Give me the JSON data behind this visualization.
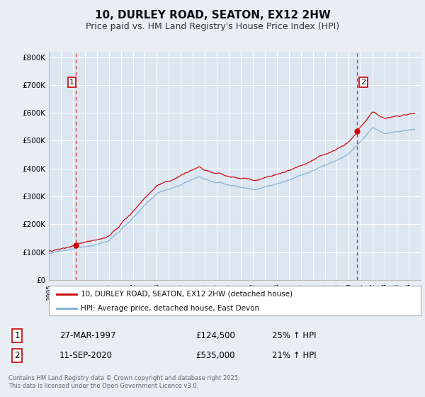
{
  "title": "10, DURLEY ROAD, SEATON, EX12 2HW",
  "subtitle": "Price paid vs. HM Land Registry's House Price Index (HPI)",
  "title_fontsize": 11,
  "subtitle_fontsize": 9,
  "background_color": "#e8eef4",
  "plot_bg_color": "#dce6f0",
  "grid_color": "#ffffff",
  "red_line_color": "#cc0000",
  "blue_line_color": "#7aadd4",
  "ylim": [
    0,
    820000
  ],
  "yticks": [
    0,
    100000,
    200000,
    300000,
    400000,
    500000,
    600000,
    700000,
    800000
  ],
  "ytick_labels": [
    "£0",
    "£100K",
    "£200K",
    "£300K",
    "£400K",
    "£500K",
    "£600K",
    "£700K",
    "£800K"
  ],
  "sale1_year": 1997.23,
  "sale1_price": 124500,
  "sale2_year": 2020.71,
  "sale2_price": 535000,
  "legend_label_red": "10, DURLEY ROAD, SEATON, EX12 2HW (detached house)",
  "legend_label_blue": "HPI: Average price, detached house, East Devon",
  "annotation1_label": "1",
  "annotation2_label": "2",
  "table_row1": [
    "1",
    "27-MAR-1997",
    "£124,500",
    "25% ↑ HPI"
  ],
  "table_row2": [
    "2",
    "11-SEP-2020",
    "£535,000",
    "21% ↑ HPI"
  ],
  "footer": "Contains HM Land Registry data © Crown copyright and database right 2025.\nThis data is licensed under the Open Government Licence v3.0."
}
